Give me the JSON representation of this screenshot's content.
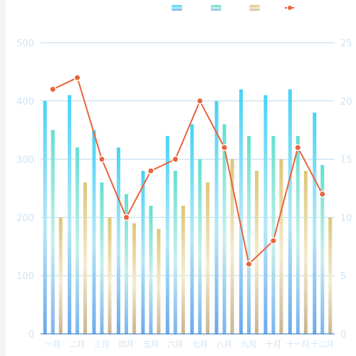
{
  "chart_data": {
    "type": "bar",
    "categories": [
      "一月",
      "二月",
      "三月",
      "四月",
      "五月",
      "六月",
      "七月",
      "八月",
      "九月",
      "十月",
      "十一月",
      "十二月"
    ],
    "series": [
      {
        "type": "bar",
        "axis": "left",
        "color": "#4fd0f5",
        "values": [
          400,
          410,
          350,
          320,
          280,
          340,
          360,
          400,
          420,
          410,
          420,
          380
        ]
      },
      {
        "type": "bar",
        "axis": "left",
        "color": "#6fe0d0",
        "values": [
          350,
          320,
          260,
          240,
          220,
          280,
          300,
          360,
          340,
          340,
          340,
          290
        ]
      },
      {
        "type": "bar",
        "axis": "left",
        "color": "#e0cf8a",
        "values": [
          200,
          260,
          200,
          190,
          180,
          220,
          260,
          300,
          280,
          300,
          280,
          200
        ]
      },
      {
        "type": "line",
        "axis": "right",
        "color": "#e8643c",
        "values": [
          21,
          22,
          15,
          10,
          14,
          15,
          20,
          16,
          6,
          8,
          16,
          12
        ]
      }
    ],
    "y_left": {
      "min": 0,
      "max": 500,
      "ticks": [
        0,
        100,
        200,
        300,
        400,
        500
      ]
    },
    "y_right": {
      "min": 0,
      "max": 25,
      "ticks": [
        0,
        5,
        10,
        15,
        20,
        25
      ]
    },
    "legend_position": "top-right",
    "grid": true
  }
}
